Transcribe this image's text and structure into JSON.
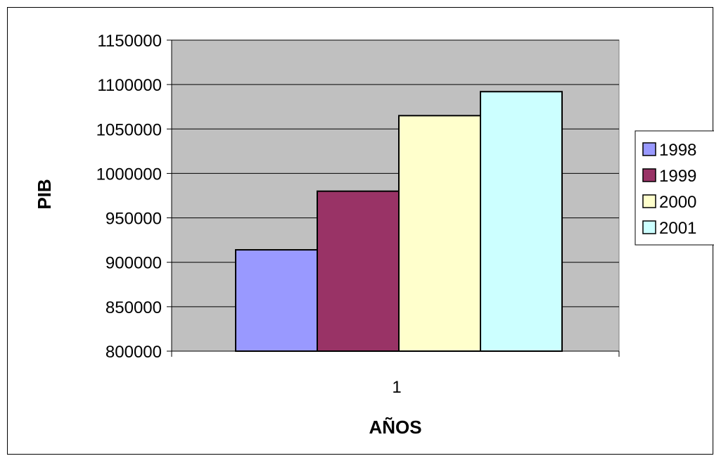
{
  "chart_data": {
    "type": "bar",
    "title": "",
    "xlabel": "AÑOS",
    "ylabel": "PIB",
    "categories": [
      "1"
    ],
    "series": [
      {
        "name": "1998",
        "values": [
          914000
        ],
        "color": "#9999ff"
      },
      {
        "name": "1999",
        "values": [
          980000
        ],
        "color": "#993366"
      },
      {
        "name": "2000",
        "values": [
          1065000
        ],
        "color": "#ffffcc"
      },
      {
        "name": "2001",
        "values": [
          1092000
        ],
        "color": "#ccffff"
      }
    ],
    "ylim": [
      800000,
      1150000
    ],
    "yticks": [
      "800000",
      "850000",
      "900000",
      "950000",
      "1000000",
      "1050000",
      "1100000",
      "1150000"
    ],
    "grid": true,
    "plot_background": "#c0c0c0",
    "legend_position": "right"
  }
}
